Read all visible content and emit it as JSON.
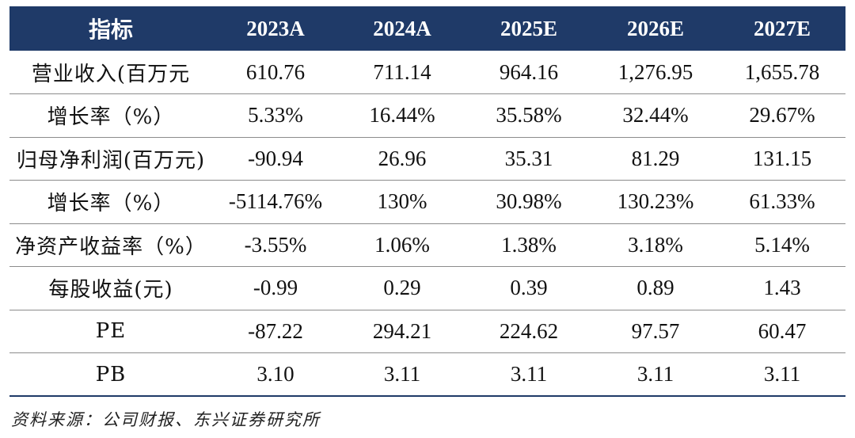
{
  "table": {
    "header": [
      "指标",
      "2023A",
      "2024A",
      "2025E",
      "2026E",
      "2027E"
    ],
    "rows": [
      {
        "label": "营业收入(百万元",
        "values": [
          "610.76",
          "711.14",
          "964.16",
          "1,276.95",
          "1,655.78"
        ]
      },
      {
        "label": "增长率（%）",
        "values": [
          "5.33%",
          "16.44%",
          "35.58%",
          "32.44%",
          "29.67%"
        ]
      },
      {
        "label": "归母净利润(百万元)",
        "values": [
          "-90.94",
          "26.96",
          "35.31",
          "81.29",
          "131.15"
        ]
      },
      {
        "label": "增长率（%）",
        "values": [
          "-5114.76%",
          "130%",
          "30.98%",
          "130.23%",
          "61.33%"
        ]
      },
      {
        "label": "净资产收益率（%）",
        "values": [
          "-3.55%",
          "1.06%",
          "1.38%",
          "3.18%",
          "5.14%"
        ]
      },
      {
        "label": "每股收益(元)",
        "values": [
          "-0.99",
          "0.29",
          "0.39",
          "0.89",
          "1.43"
        ]
      },
      {
        "label": "PE",
        "values": [
          "-87.22",
          "294.21",
          "224.62",
          "97.57",
          "60.47"
        ]
      },
      {
        "label": "PB",
        "values": [
          "3.10",
          "3.11",
          "3.11",
          "3.11",
          "3.11"
        ]
      }
    ]
  },
  "source": "资料来源：公司财报、东兴证券研究所",
  "colors": {
    "header_bg": "#1f3a68",
    "header_text": "#ffffff",
    "divider": "#8c8c8c"
  }
}
